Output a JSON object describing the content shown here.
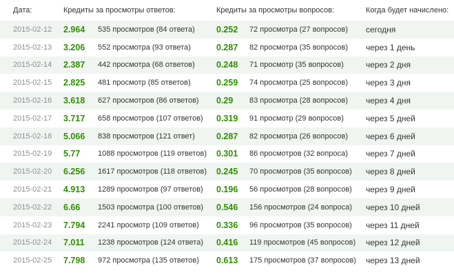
{
  "headers": {
    "date": "Дата:",
    "answers_credits": "Кредиты за просмотры ответов:",
    "questions_credits": "Кредиты за просмотры вопросов:",
    "when": "Когда будет начислено:"
  },
  "rows": [
    {
      "date": "2015-02-12",
      "a_credit": "2.964",
      "a_views": "535 просмотров (84 ответа)",
      "q_credit": "0.252",
      "q_views": "72 просмотра (27 вопросов)",
      "when": "сегодня"
    },
    {
      "date": "2015-02-13",
      "a_credit": "3.206",
      "a_views": "552 просмотра (93 ответа)",
      "q_credit": "0.287",
      "q_views": "82 просмотра (35 вопросов)",
      "when": "через 1 день"
    },
    {
      "date": "2015-02-14",
      "a_credit": "2.387",
      "a_views": "442 просмотра (68 ответов)",
      "q_credit": "0.248",
      "q_views": "71 просмотр (35 вопросов)",
      "when": "через 2 дня"
    },
    {
      "date": "2015-02-15",
      "a_credit": "2.825",
      "a_views": "481 просмотр (85 ответов)",
      "q_credit": "0.259",
      "q_views": "74 просмотра (25 вопросов)",
      "when": "через 3 дня"
    },
    {
      "date": "2015-02-16",
      "a_credit": "3.618",
      "a_views": "627 просмотров (86 ответов)",
      "q_credit": "0.29",
      "q_views": "83 просмотра (28 вопросов)",
      "when": "через 4 дня"
    },
    {
      "date": "2015-02-17",
      "a_credit": "3.717",
      "a_views": "658 просмотров (107 ответов)",
      "q_credit": "0.319",
      "q_views": "91 просмотр (29 вопросов)",
      "when": "через 5 дней"
    },
    {
      "date": "2015-02-18",
      "a_credit": "5.066",
      "a_views": "838 просмотров (121 ответ)",
      "q_credit": "0.287",
      "q_views": "82 просмотра (26 вопросов)",
      "when": "через 6 дней"
    },
    {
      "date": "2015-02-19",
      "a_credit": "5.77",
      "a_views": "1088 просмотров (119 ответов)",
      "q_credit": "0.301",
      "q_views": "86 просмотров (32 вопроса)",
      "when": "через 7 дней"
    },
    {
      "date": "2015-02-20",
      "a_credit": "6.256",
      "a_views": "1617 просмотров (118 ответов)",
      "q_credit": "0.245",
      "q_views": "70 просмотров (35 вопросов)",
      "when": "через 8 дней"
    },
    {
      "date": "2015-02-21",
      "a_credit": "4.913",
      "a_views": "1289 просмотров (97 ответов)",
      "q_credit": "0.196",
      "q_views": "56 просмотров (28 вопросов)",
      "when": "через 9 дней"
    },
    {
      "date": "2015-02-22",
      "a_credit": "6.66",
      "a_views": "1503 просмотра (100 ответов)",
      "q_credit": "0.546",
      "q_views": "156 просмотров (24 вопроса)",
      "when": "через 10 дней"
    },
    {
      "date": "2015-02-23",
      "a_credit": "7.794",
      "a_views": "2241 просмотр (109 ответов)",
      "q_credit": "0.336",
      "q_views": "96 просмотров (35 вопросов)",
      "when": "через 11 дней"
    },
    {
      "date": "2015-02-24",
      "a_credit": "7.011",
      "a_views": "1238 просмотров (124 ответа)",
      "q_credit": "0.416",
      "q_views": "119 просмотров (45 вопросов)",
      "when": "через 12 дней"
    },
    {
      "date": "2015-02-25",
      "a_credit": "7.798",
      "a_views": "972 просмотра (135 ответов)",
      "q_credit": "0.613",
      "q_views": "175 просмотров (37 вопросов)",
      "when": "через 13 дней"
    }
  ],
  "colors": {
    "credit_green": "#2e8f00",
    "date_gray": "#8a8f93",
    "row_stripe": "#f1f5f1"
  }
}
